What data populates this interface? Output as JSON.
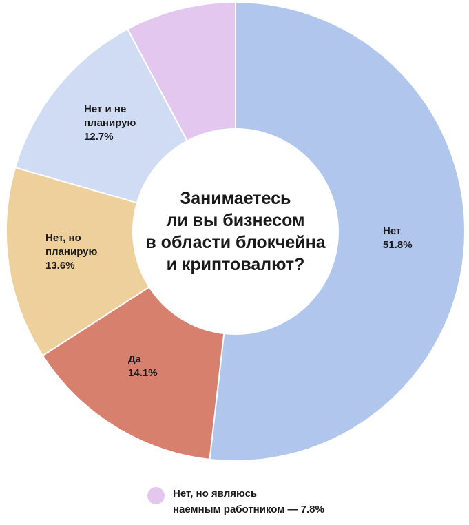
{
  "chart_data": {
    "type": "pie",
    "variant": "donut",
    "center_text": [
      "Занимаетесь",
      "ли вы бизнесом",
      "в области блокчейна",
      "и криптовалют?"
    ],
    "slices": [
      {
        "label_lines": [
          "Нет",
          "51.8%"
        ],
        "value": 51.8,
        "color": "#b1c6ec"
      },
      {
        "label_lines": [
          "Да",
          "14.1%"
        ],
        "value": 14.1,
        "color": "#d7806e"
      },
      {
        "label_lines": [
          "Нет, но",
          "планирую",
          "13.6%"
        ],
        "value": 13.6,
        "color": "#edd09c"
      },
      {
        "label_lines": [
          "Нет и не",
          "планирую",
          "12.7%"
        ],
        "value": 12.7,
        "color": "#cfdcf3"
      },
      {
        "label_lines": [],
        "value": 7.8,
        "color": "#e3c7ef"
      }
    ],
    "legend": {
      "color": "#e3c7ef",
      "lines": [
        "Нет, но являюсь",
        "наемным работником — 7.8%"
      ]
    }
  }
}
